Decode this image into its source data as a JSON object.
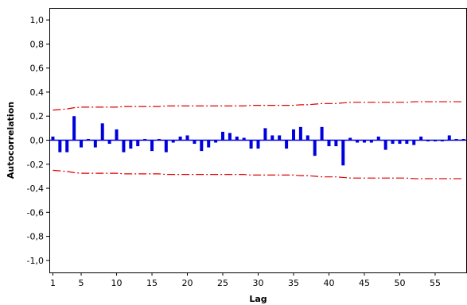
{
  "chart_data": {
    "type": "bar",
    "title": "",
    "xlabel": "Lag",
    "ylabel": "Autocorrelation",
    "xlim": [
      0.5,
      59.5
    ],
    "ylim": [
      -1.1,
      1.1
    ],
    "x_ticks": [
      1,
      5,
      10,
      15,
      20,
      25,
      30,
      35,
      40,
      45,
      50,
      55
    ],
    "x_tick_labels": [
      "1",
      "5",
      "10",
      "15",
      "20",
      "25",
      "30",
      "35",
      "40",
      "45",
      "50",
      "55"
    ],
    "y_ticks": [
      1.0,
      0.8,
      0.6,
      0.4,
      0.2,
      0.0,
      -0.2,
      -0.4,
      -0.6,
      -0.8,
      -1.0
    ],
    "y_tick_labels": [
      "1,0",
      "0,8",
      "0,6",
      "0,4",
      "0,2",
      "0,0",
      "-0,2",
      "-0,4",
      "-0,6",
      "-0,8",
      "-1,0"
    ],
    "grid": false,
    "lags": [
      1,
      2,
      3,
      4,
      5,
      6,
      7,
      8,
      9,
      10,
      11,
      12,
      13,
      14,
      15,
      16,
      17,
      18,
      19,
      20,
      21,
      22,
      23,
      24,
      25,
      26,
      27,
      28,
      29,
      30,
      31,
      32,
      33,
      34,
      35,
      36,
      37,
      38,
      39,
      40,
      41,
      42,
      43,
      44,
      45,
      46,
      47,
      48,
      49,
      50,
      51,
      52,
      53,
      54,
      55,
      56,
      57,
      58,
      59
    ],
    "values": [
      0.03,
      -0.1,
      -0.1,
      0.2,
      -0.06,
      0.01,
      -0.06,
      0.14,
      -0.03,
      0.09,
      -0.1,
      -0.07,
      -0.05,
      0.01,
      -0.09,
      0.01,
      -0.1,
      -0.02,
      0.03,
      0.04,
      -0.03,
      -0.09,
      -0.06,
      -0.02,
      0.07,
      0.06,
      0.03,
      0.02,
      -0.07,
      -0.07,
      0.1,
      0.04,
      0.04,
      -0.07,
      0.09,
      0.11,
      0.04,
      -0.13,
      0.11,
      -0.05,
      -0.05,
      -0.21,
      0.02,
      -0.02,
      -0.02,
      -0.02,
      0.03,
      -0.08,
      -0.03,
      -0.03,
      -0.03,
      -0.04,
      0.03,
      -0.01,
      -0.01,
      -0.01,
      0.04,
      0.01,
      0.01
    ],
    "confidence_upper": [
      0.25,
      0.255,
      0.26,
      0.27,
      0.275,
      0.275,
      0.275,
      0.275,
      0.275,
      0.275,
      0.28,
      0.28,
      0.28,
      0.28,
      0.28,
      0.28,
      0.285,
      0.285,
      0.285,
      0.285,
      0.285,
      0.285,
      0.285,
      0.285,
      0.285,
      0.285,
      0.285,
      0.285,
      0.29,
      0.29,
      0.29,
      0.29,
      0.29,
      0.29,
      0.29,
      0.295,
      0.295,
      0.3,
      0.305,
      0.305,
      0.305,
      0.31,
      0.315,
      0.315,
      0.315,
      0.315,
      0.315,
      0.315,
      0.315,
      0.315,
      0.315,
      0.32,
      0.32,
      0.32,
      0.32,
      0.32,
      0.32,
      0.32,
      0.32
    ],
    "series_colors": {
      "bars": "#0000dd",
      "confidence_limits": "#dd0000"
    }
  }
}
